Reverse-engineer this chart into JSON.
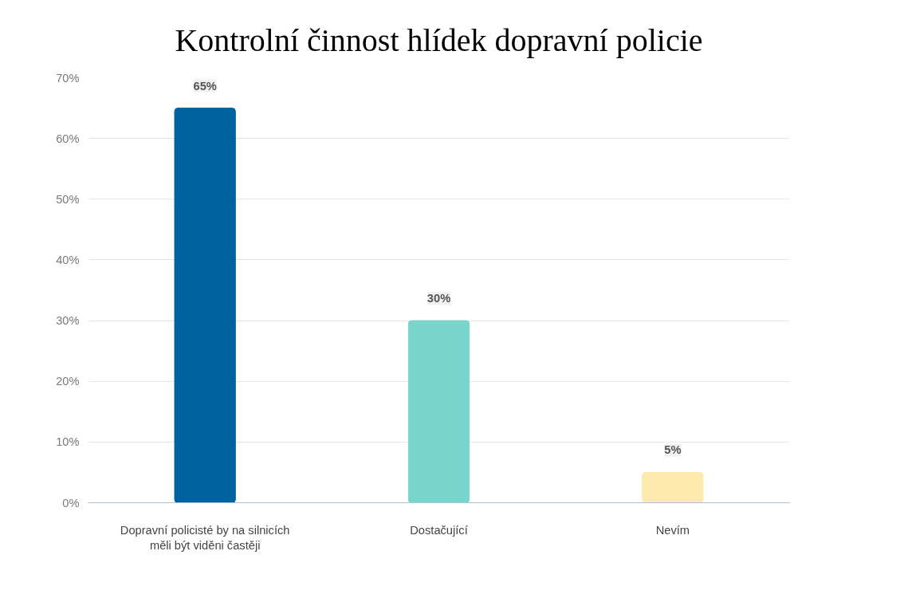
{
  "chart_data": {
    "type": "bar",
    "title": "Kontrolní činnost hlídek dopravní policie",
    "categories": [
      "Dopravní policisté by na silnicích měli být viděni častěji",
      "Dostačující",
      "Nevím"
    ],
    "values": [
      65,
      30,
      5
    ],
    "colors": [
      "#0063a0",
      "#79d5cb",
      "#ffeaae"
    ],
    "value_labels": [
      "65%",
      "30%",
      "5%"
    ],
    "ylim": [
      0,
      70
    ],
    "yticks": [
      {
        "value": 0,
        "label": "0%"
      },
      {
        "value": 10,
        "label": "10%"
      },
      {
        "value": 20,
        "label": "20%"
      },
      {
        "value": 30,
        "label": "30%"
      },
      {
        "value": 40,
        "label": "40%"
      },
      {
        "value": 50,
        "label": "50%"
      },
      {
        "value": 60,
        "label": "60%"
      },
      {
        "value": 70,
        "label": "70%"
      }
    ],
    "grid": "y"
  }
}
